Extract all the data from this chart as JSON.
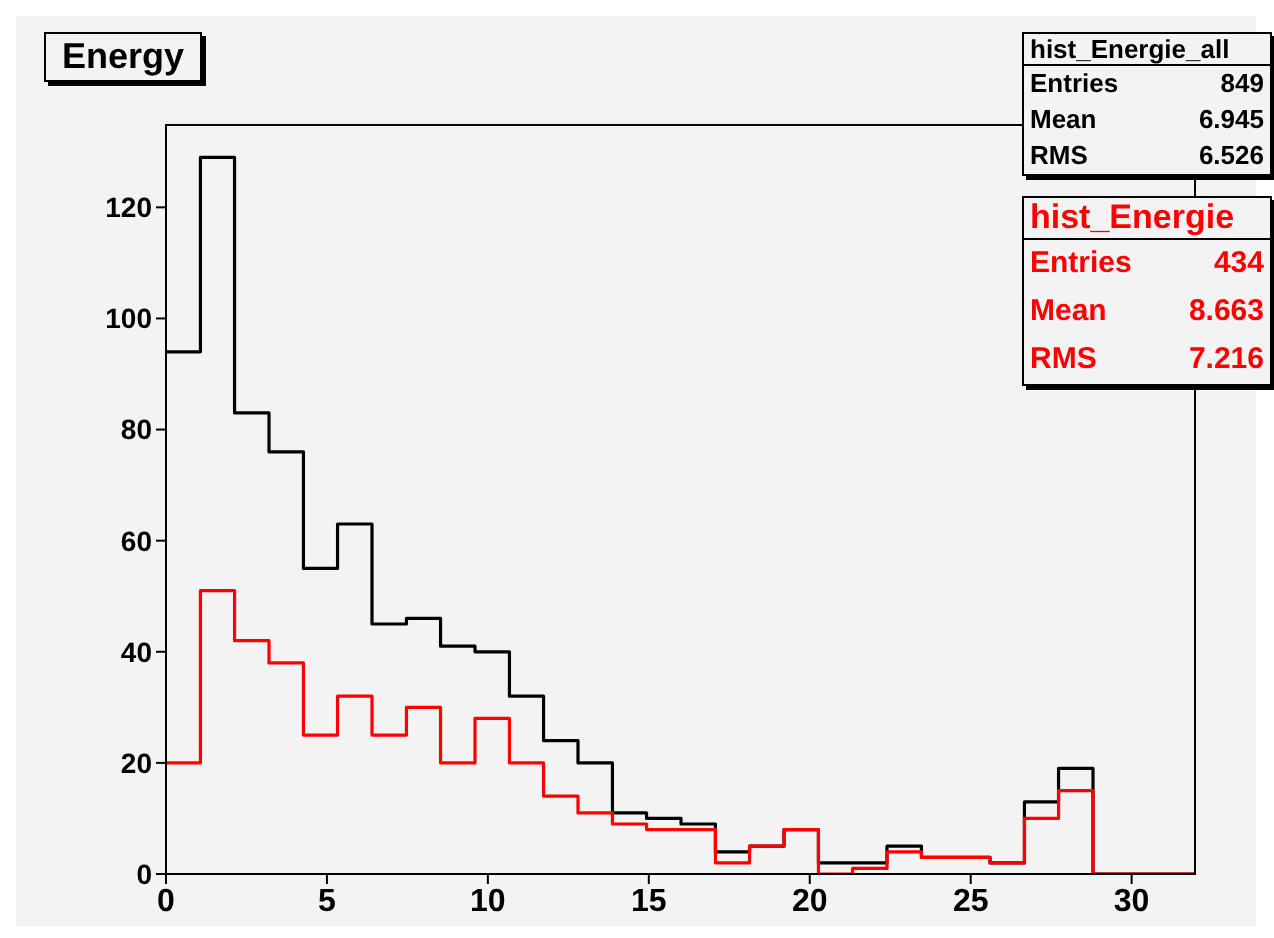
{
  "chart_data": {
    "type": "histogram",
    "title": "Energy",
    "bins": [
      0,
      1.07,
      2.13,
      3.2,
      4.27,
      5.33,
      6.4,
      7.47,
      8.53,
      9.6,
      10.67,
      11.73,
      12.8,
      13.87,
      14.93,
      16,
      17.07,
      18.13,
      19.2,
      20.27,
      21.33,
      22.4,
      23.47,
      24.53,
      25.6,
      26.67,
      27.73,
      28.8,
      29.87,
      30.93,
      32
    ],
    "series": [
      {
        "name": "hist_Energie_all",
        "color": "#000000",
        "values": [
          94,
          129,
          83,
          76,
          55,
          63,
          45,
          46,
          41,
          40,
          32,
          24,
          20,
          11,
          10,
          9,
          4,
          5,
          8,
          2,
          2,
          5,
          3,
          3,
          2,
          13,
          19,
          0,
          0,
          0
        ]
      },
      {
        "name": "hist_Energie",
        "color": "#ff0000",
        "values": [
          20,
          51,
          42,
          38,
          25,
          32,
          25,
          30,
          20,
          28,
          20,
          14,
          11,
          9,
          8,
          8,
          2,
          5,
          8,
          0,
          1,
          4,
          3,
          3,
          2,
          10,
          15,
          0,
          0,
          0
        ]
      }
    ],
    "annotations": [
      "Entries 849",
      "Mean 6.945",
      "RMS 6.526",
      "Entries 434",
      "Mean 8.663",
      "RMS 7.216"
    ],
    "xlim": [
      0,
      32
    ],
    "xticks": [
      0,
      5,
      10,
      15,
      20,
      25,
      30
    ],
    "ylim": [
      0,
      135
    ],
    "yticks": [
      0,
      20,
      40,
      60,
      80,
      100,
      120
    ],
    "grid": false,
    "legend": "top right"
  }
}
